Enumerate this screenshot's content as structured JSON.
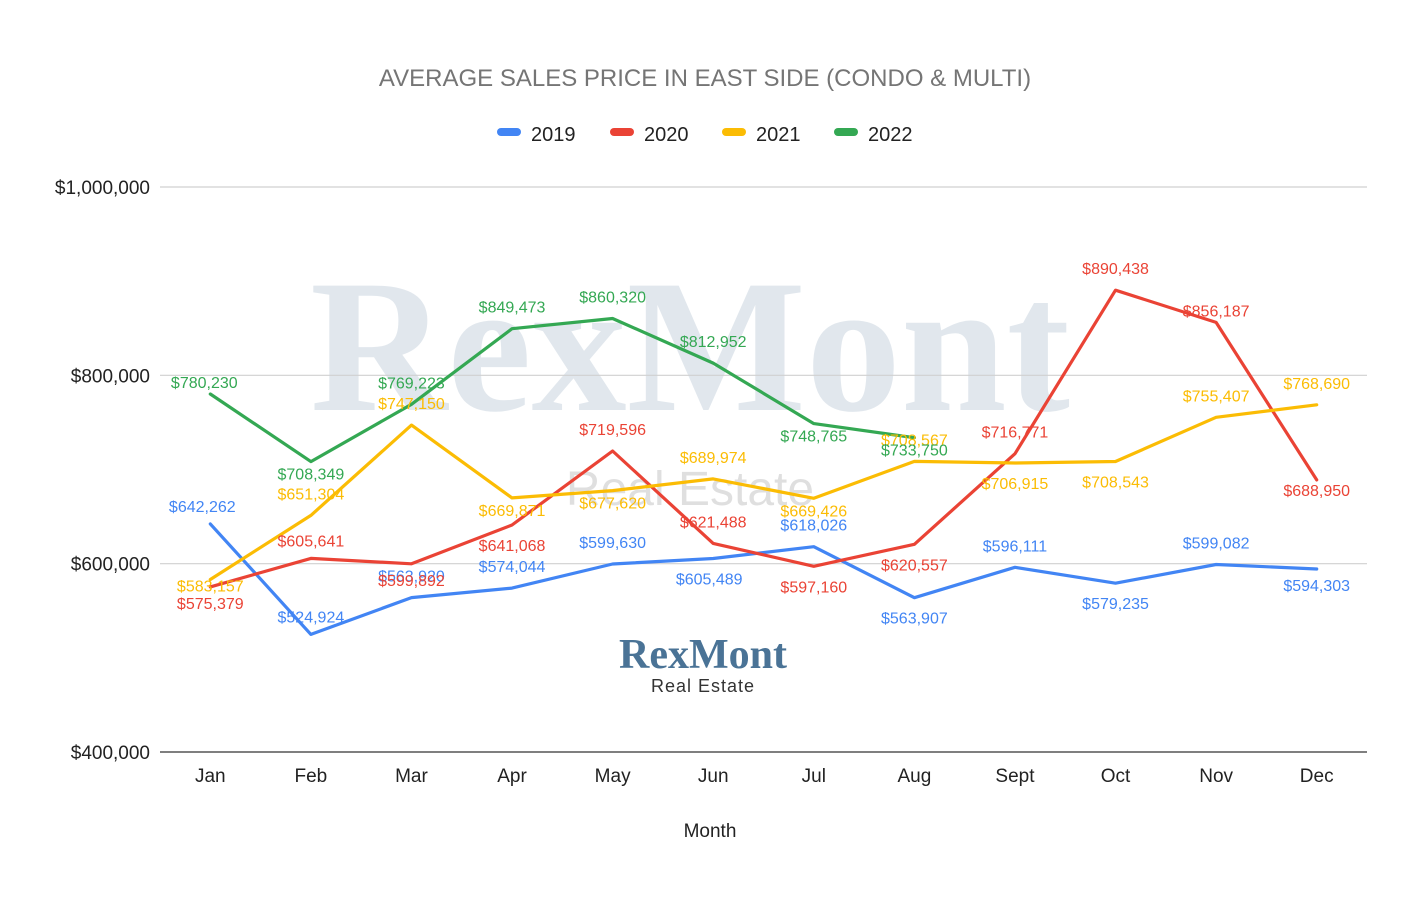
{
  "chart_data": {
    "type": "line",
    "title": "AVERAGE SALES PRICE IN EAST SIDE (CONDO & MULTI)",
    "xlabel": "Month",
    "ylabel": "",
    "ylim": [
      400000,
      1000000
    ],
    "yticks": [
      400000,
      600000,
      800000,
      1000000
    ],
    "ytick_labels": [
      "$400,000",
      "$600,000",
      "$800,000",
      "$1,000,000"
    ],
    "grid": true,
    "legend_position": "top",
    "categories": [
      "Jan",
      "Feb",
      "Mar",
      "Apr",
      "May",
      "Jun",
      "Jul",
      "Aug",
      "Sept",
      "Oct",
      "Nov",
      "Dec"
    ],
    "series": [
      {
        "name": "2019",
        "color": "#4285f4",
        "values": [
          642262,
          524924,
          563920,
          574044,
          599630,
          605489,
          618026,
          563907,
          596111,
          579235,
          599082,
          594303
        ],
        "labels": [
          "$642,262",
          "$524,924",
          "$563,920",
          "$574,044",
          "$599,630",
          "$605,489",
          "$618,026",
          "$563,907",
          "$596,111",
          "$579,235",
          "$599,082",
          "$594,303"
        ]
      },
      {
        "name": "2020",
        "color": "#ea4335",
        "values": [
          575379,
          605641,
          599892,
          641068,
          719596,
          621488,
          597160,
          620557,
          716771,
          890438,
          856187,
          688950
        ],
        "labels": [
          "$575,379",
          "$605,641",
          "$599,892",
          "$641,068",
          "$719,596",
          "$621,488",
          "$597,160",
          "$620,557",
          "$716,771",
          "$890,438",
          "$856,187",
          "$688,950"
        ]
      },
      {
        "name": "2021",
        "color": "#fbbc04",
        "values": [
          583157,
          651304,
          747150,
          669871,
          677620,
          689974,
          669426,
          708567,
          706915,
          708543,
          755407,
          768690
        ],
        "labels": [
          "$583,157",
          "$651,304",
          "$747,150",
          "$669,871",
          "$677,620",
          "$689,974",
          "$669,426",
          "$708,567",
          "$706,915",
          "$708,543",
          "$755,407",
          "$768,690"
        ]
      },
      {
        "name": "2022",
        "color": "#34a853",
        "values": [
          780230,
          708349,
          769223,
          849473,
          860320,
          812952,
          748765,
          733750,
          null,
          null,
          null,
          null
        ],
        "labels": [
          "$780,230",
          "$708,349",
          "$769,223",
          "$849,473",
          "$860,320",
          "$812,952",
          "$748,765",
          "$733,750",
          null,
          null,
          null,
          null
        ]
      }
    ]
  },
  "branding": {
    "watermark_main": "RexMont",
    "watermark_sub": "Real Estate",
    "logo_main": "RexMont",
    "logo_sub": "Real Estate"
  },
  "colors": {
    "grid": "#d0d0d0",
    "title": "#757575",
    "text": "#222222"
  }
}
